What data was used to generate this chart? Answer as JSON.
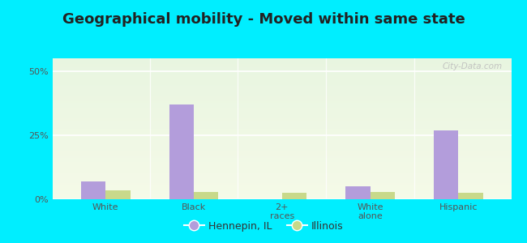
{
  "title": "Geographical mobility - Moved within same state",
  "categories": [
    "White",
    "Black",
    "2+\nraces",
    "White\nalone",
    "Hispanic"
  ],
  "hennepin_values": [
    7,
    37,
    0,
    5,
    27
  ],
  "illinois_values": [
    3.5,
    3.0,
    2.5,
    3.0,
    2.5
  ],
  "hennepin_color": "#b39ddb",
  "illinois_color": "#c8d98a",
  "background_color": "#00eeff",
  "grad_top": "#e8f5e0",
  "grad_bottom": "#f5fae8",
  "yticks": [
    0,
    25,
    50
  ],
  "ylim": [
    0,
    55
  ],
  "bar_width": 0.28,
  "legend_labels": [
    "Hennepin, IL",
    "Illinois"
  ],
  "watermark": "City-Data.com",
  "title_fontsize": 13,
  "tick_fontsize": 8
}
